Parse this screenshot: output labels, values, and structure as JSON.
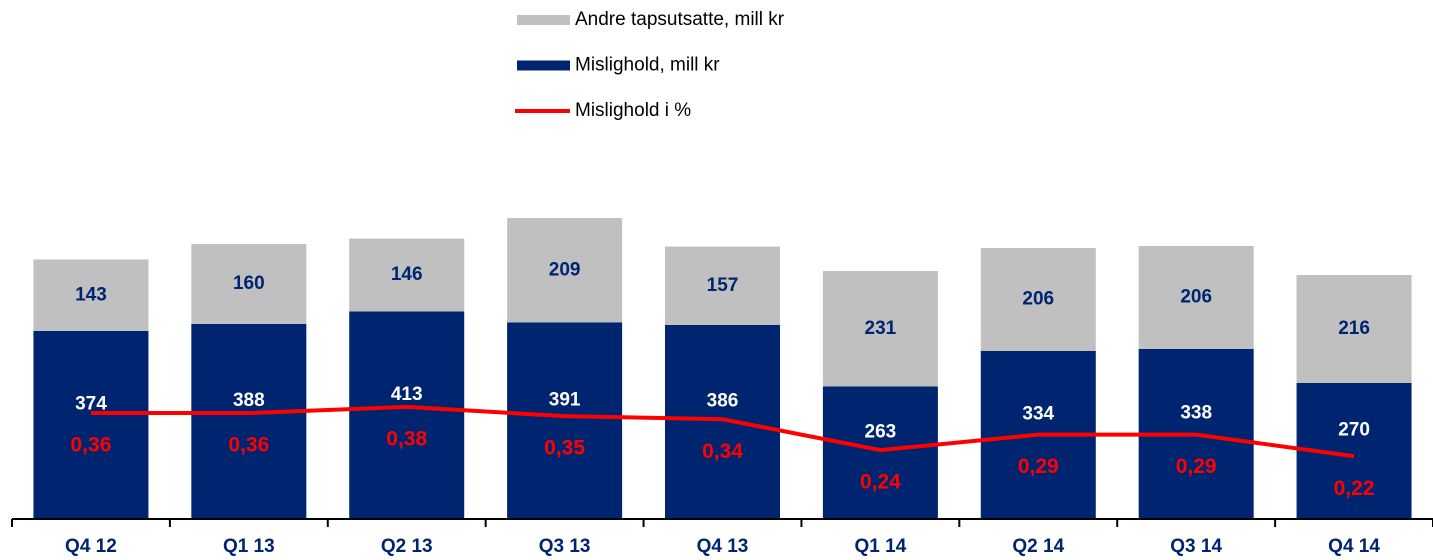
{
  "chart_data": {
    "type": "bar_line",
    "categories": [
      "Q4 12",
      "Q1 13",
      "Q2 13",
      "Q3 13",
      "Q4 13",
      "Q1 14",
      "Q2 14",
      "Q3 14",
      "Q4 14"
    ],
    "series": [
      {
        "name": "Mislighold, mill kr",
        "color": "#002570",
        "type": "bar",
        "values": [
          374,
          388,
          413,
          391,
          386,
          263,
          334,
          338,
          270
        ]
      },
      {
        "name": "Andre tapsutsatte, mill kr",
        "color": "#c0c0c0",
        "type": "bar",
        "values": [
          143,
          160,
          146,
          209,
          157,
          231,
          206,
          206,
          216
        ]
      },
      {
        "name": "Mislighold i %",
        "color": "#ff0000",
        "type": "line",
        "axis": "y2",
        "values": [
          0.36,
          0.36,
          0.38,
          0.35,
          0.34,
          0.24,
          0.29,
          0.29,
          0.22
        ],
        "value_labels": [
          "0,36",
          "0,36",
          "0,38",
          "0,35",
          "0,34",
          "0,24",
          "0,29",
          "0,29",
          "0,22"
        ]
      }
    ],
    "ylim": [
      0,
      1000
    ],
    "y2lim": [
      0.02,
      1.64
    ]
  }
}
